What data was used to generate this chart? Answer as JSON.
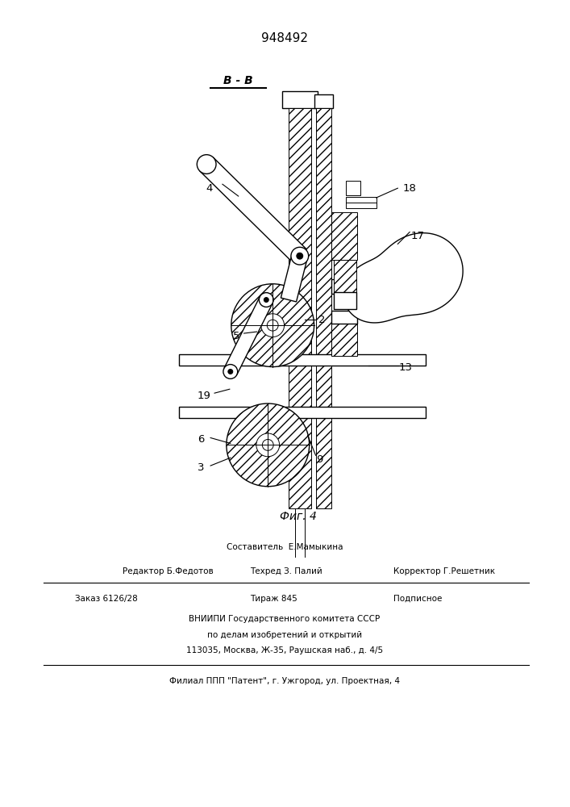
{
  "patent_number": "948492",
  "section_label": "B - B",
  "fig_label": "Фиг. 4",
  "bg_color": "#ffffff",
  "line_color": "#000000",
  "footer": {
    "line1": "Составитель  Е.Мамыкина",
    "line2_left": "Редактор Б.Федотов",
    "line2_mid": "Техред З. Палий",
    "line2_right": "Корректор Г.Решетник",
    "line3_left": "Заказ 6126/28",
    "line3_mid": "Тираж 845",
    "line3_right": "Подписное",
    "line4": "ВНИИПИ Государственного комитета СССР",
    "line5": "по делам изобретений и открытий",
    "line6": "113035, Москва, Ж-35, Раушская наб., д. 4/5",
    "line7": "Филиал ППП \"Патент\", г. Ужгород, ул. Проектная, 4"
  }
}
